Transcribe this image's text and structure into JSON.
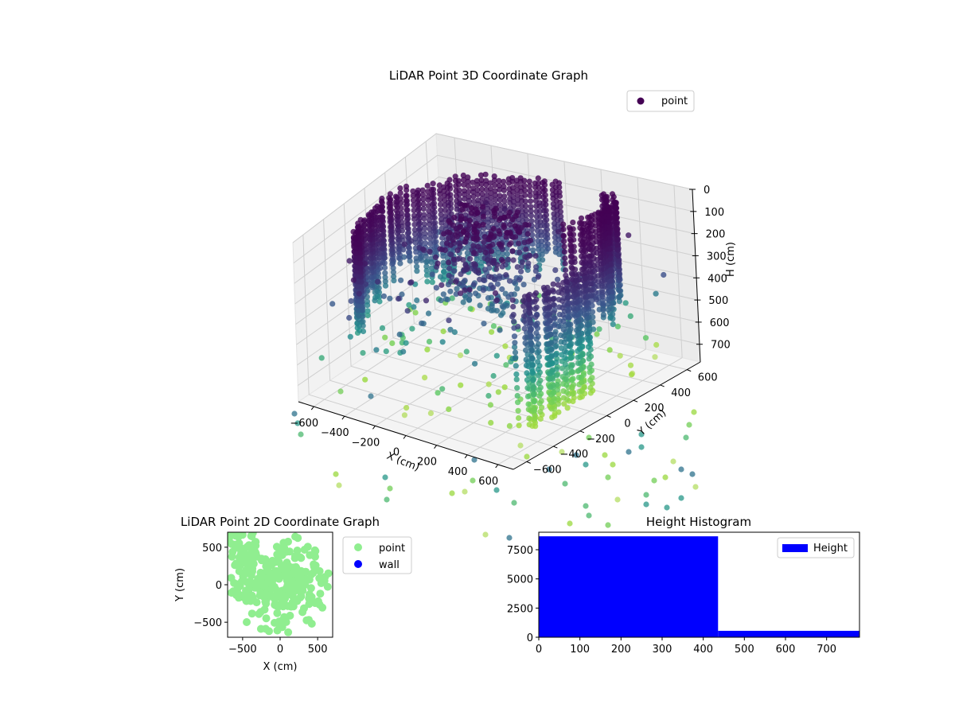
{
  "chart_data": [
    {
      "type": "scatter",
      "projection": "3d",
      "title": "LiDAR Point 3D Coordinate Graph",
      "xlabel": "X (cm)",
      "ylabel": "Y (cm)",
      "zlabel": "H (cm)",
      "xlim": [
        -700,
        700
      ],
      "ylim": [
        -700,
        700
      ],
      "zlim": [
        0,
        780
      ],
      "zaxis_inverted": true,
      "x_ticks": [
        -600,
        -400,
        -200,
        0,
        200,
        400,
        600
      ],
      "y_ticks": [
        -600,
        -400,
        -200,
        0,
        200,
        400,
        600
      ],
      "z_ticks": [
        0,
        100,
        200,
        300,
        400,
        500,
        600,
        700
      ],
      "legend": [
        "point"
      ],
      "legend_position": "top-right",
      "grid": true,
      "colormap": "viridis"
    },
    {
      "type": "scatter",
      "title": "LiDAR Point 2D Coordinate Graph",
      "xlabel": "X (cm)",
      "ylabel": "Y (cm)",
      "xlim": [
        -700,
        700
      ],
      "ylim": [
        -700,
        700
      ],
      "x_ticks": [
        -500,
        0,
        500
      ],
      "y_ticks": [
        -500,
        0,
        500
      ],
      "series": [
        {
          "name": "point",
          "color": "#90ee90"
        },
        {
          "name": "wall",
          "color": "#0000ff"
        }
      ],
      "legend_position": "outside-right"
    },
    {
      "type": "bar",
      "subtype": "histogram",
      "title": "Height Histogram",
      "xlim": [
        0,
        780
      ],
      "ylim": [
        0,
        9000
      ],
      "x_ticks": [
        0,
        100,
        200,
        300,
        400,
        500,
        600,
        700
      ],
      "y_ticks": [
        0,
        2500,
        5000,
        7500
      ],
      "bins": [
        {
          "start": 0,
          "end": 436,
          "count": 8650
        },
        {
          "start": 436,
          "end": 780,
          "count": 550
        }
      ],
      "series": [
        {
          "name": "Height",
          "color": "#0000ff"
        }
      ],
      "legend_position": "top-right"
    }
  ]
}
